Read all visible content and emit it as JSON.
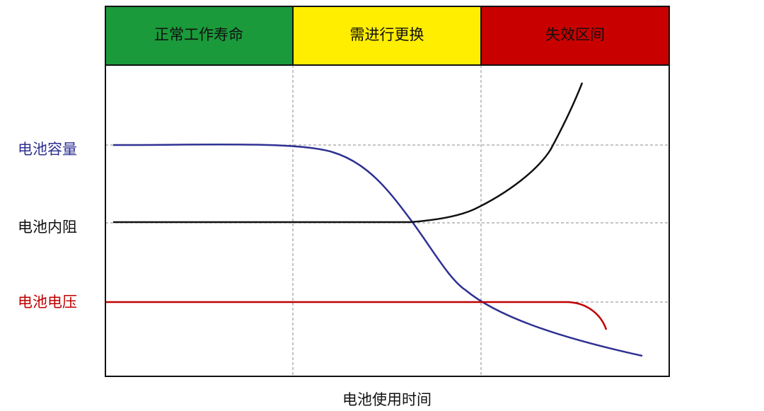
{
  "zones": [
    "正常工作寿命",
    "需进行更换",
    "失效区间"
  ],
  "curve_labels": [
    "电池容量",
    "电池内阻",
    "电池电压"
  ],
  "x_axis_label": "电池使用时间"
}
